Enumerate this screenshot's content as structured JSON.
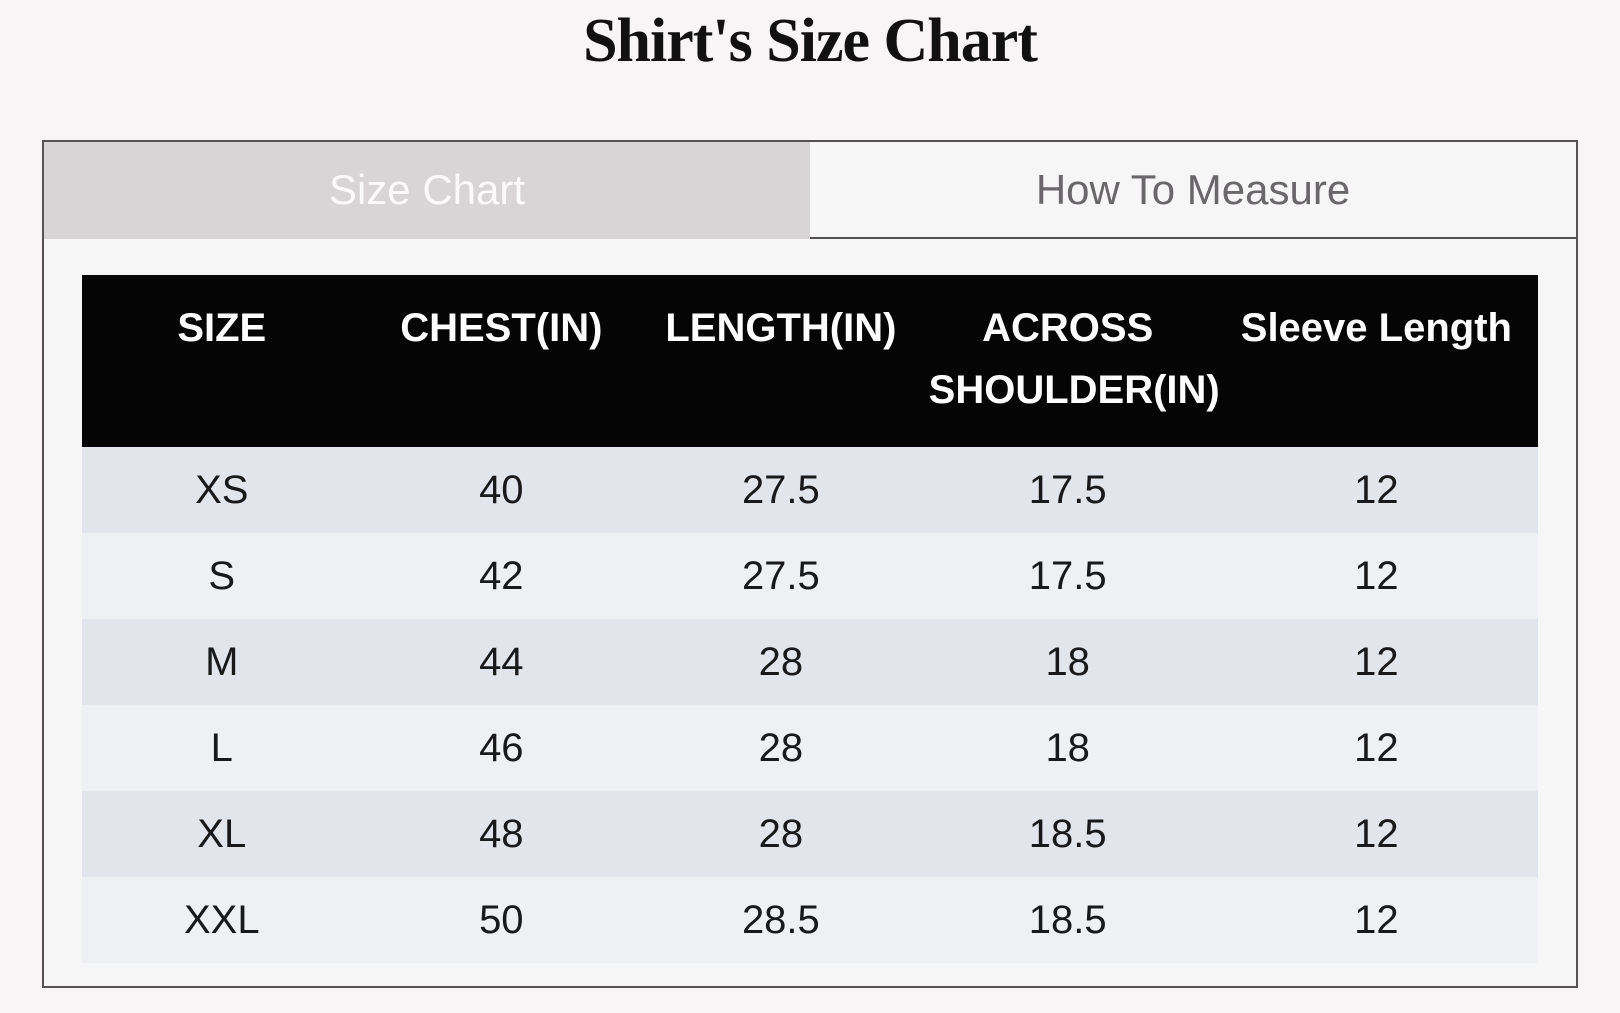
{
  "page": {
    "title": "Shirt's Size Chart"
  },
  "tabs": [
    {
      "label": "Size Chart",
      "active": true
    },
    {
      "label": "How To Measure",
      "active": false
    }
  ],
  "table": {
    "headers": [
      "SIZE",
      "CHEST(IN)",
      "LENGTH(IN)",
      "ACROSS SHOULDER(IN)",
      "Sleeve Length"
    ],
    "rows": [
      [
        "XS",
        "40",
        "27.5",
        "17.5",
        "12"
      ],
      [
        "S",
        "42",
        "27.5",
        "17.5",
        "12"
      ],
      [
        "M",
        "44",
        "28",
        "18",
        "12"
      ],
      [
        "L",
        "46",
        "28",
        "18",
        "12"
      ],
      [
        "XL",
        "48",
        "28",
        "18.5",
        "12"
      ],
      [
        "XXL",
        "50",
        "28.5",
        "18.5",
        "12"
      ]
    ]
  },
  "colors": {
    "page_bg": "#f7f5f6",
    "panel_border": "#545254",
    "active_tab_bg": "#d7d5d6",
    "active_tab_text": "#fbfafb",
    "inactive_tab_text": "#696769",
    "header_bg": "#050505",
    "header_text": "#fdfdfd",
    "row_dark": "#e3e5ec",
    "row_light": "#eff0f4",
    "cell_text": "#19191b"
  }
}
